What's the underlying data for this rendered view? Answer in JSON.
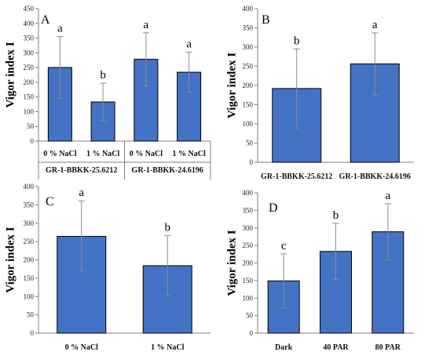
{
  "chart_data": [
    {
      "type": "bar",
      "panel": "A",
      "ylabel": "Vigor index I",
      "ylim": [
        0,
        450
      ],
      "yticks": [
        0,
        50,
        100,
        150,
        200,
        250,
        300,
        350,
        400,
        450
      ],
      "categories": [
        "0 % NaCl",
        "1 % NaCl",
        "0 % NaCl",
        "1 % NaCl"
      ],
      "groups": [
        {
          "label": "GR-1-BBKK-25.6212",
          "span": [
            0,
            1
          ]
        },
        {
          "label": "GR-1-BBKK-24.6196",
          "span": [
            2,
            3
          ]
        }
      ],
      "values": [
        250,
        133,
        278,
        234
      ],
      "errors": [
        105,
        64,
        90,
        68
      ],
      "letters": [
        "a",
        "b",
        "a",
        "a"
      ]
    },
    {
      "type": "bar",
      "panel": "B",
      "ylabel": "Vigor index I",
      "ylim": [
        0,
        400
      ],
      "yticks": [
        0,
        50,
        100,
        150,
        200,
        250,
        300,
        350,
        400
      ],
      "categories": [
        "GR-1-BBKK-25.6212",
        "GR-1-BBKK-24.6196"
      ],
      "values": [
        192,
        256
      ],
      "errors": [
        103,
        81
      ],
      "letters": [
        "b",
        "a"
      ]
    },
    {
      "type": "bar",
      "panel": "C",
      "ylabel": "Vigor index I",
      "ylim": [
        0,
        400
      ],
      "yticks": [
        0,
        50,
        100,
        150,
        200,
        250,
        300,
        350,
        400
      ],
      "categories": [
        "0 % NaCl",
        "1 % NaCl"
      ],
      "values": [
        264,
        184
      ],
      "errors": [
        97,
        82
      ],
      "letters": [
        "a",
        "b"
      ]
    },
    {
      "type": "bar",
      "panel": "D",
      "ylabel": "Vigor index I",
      "ylim": [
        0,
        400
      ],
      "yticks": [
        0,
        50,
        100,
        150,
        200,
        250,
        300,
        350,
        400
      ],
      "categories": [
        "Dark",
        "40 PAR",
        "80 PAR"
      ],
      "values": [
        149,
        233,
        289
      ],
      "errors": [
        77,
        80,
        80
      ],
      "letters": [
        "c",
        "b",
        "a"
      ]
    }
  ]
}
